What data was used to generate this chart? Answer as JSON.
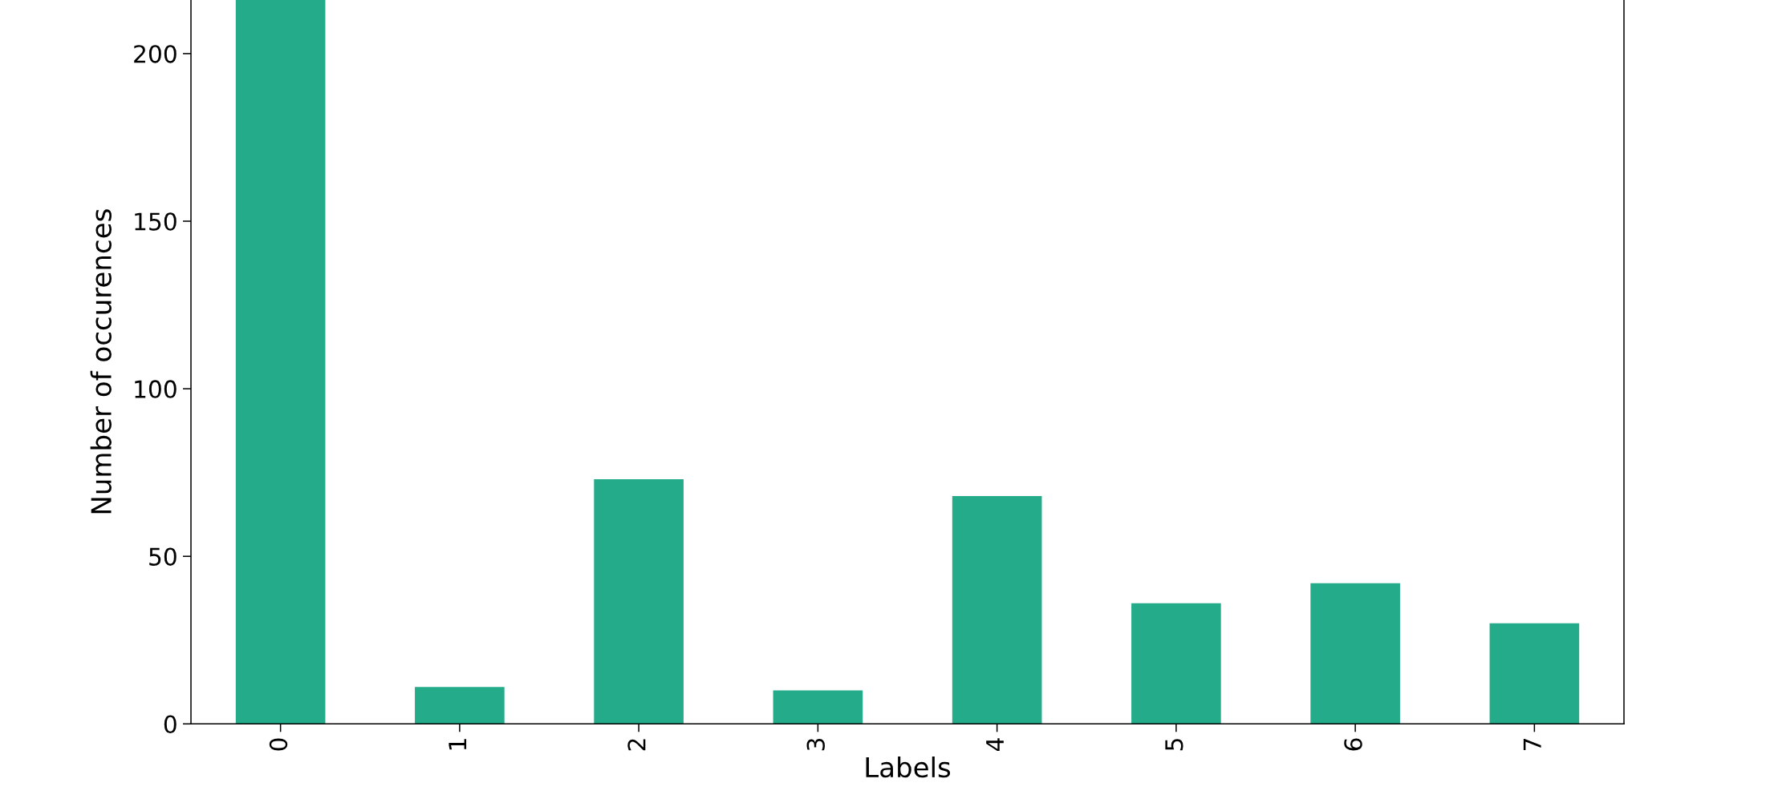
{
  "chart_data": {
    "type": "bar",
    "xlabel": "Labels",
    "ylabel": "Number of occurences",
    "categories": [
      "0",
      "1",
      "2",
      "3",
      "4",
      "5",
      "6",
      "7"
    ],
    "values": [
      216,
      11,
      73,
      10,
      68,
      36,
      42,
      30
    ],
    "color": "#24ab8a",
    "ylim": [
      0,
      216
    ],
    "yticks": [
      0,
      50,
      100,
      150,
      200
    ]
  }
}
